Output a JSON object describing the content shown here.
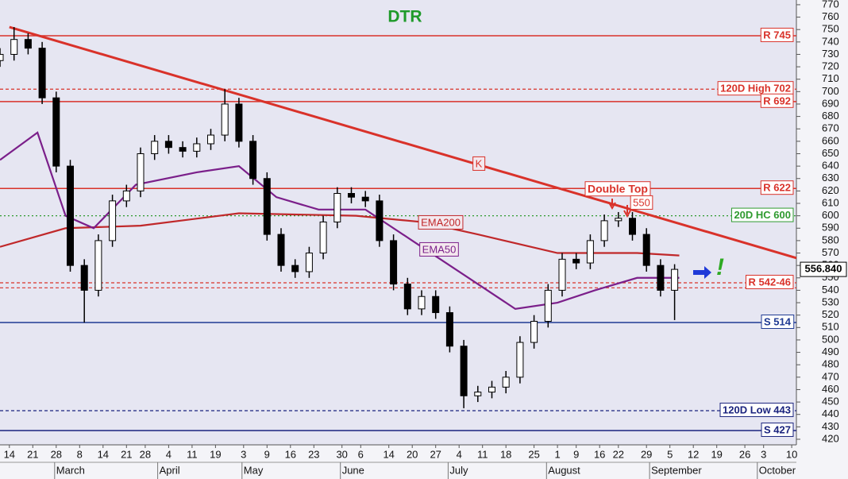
{
  "chart_data": {
    "type": "candlestick",
    "title": "DTR",
    "xlim": [
      0,
      170
    ],
    "ylim": [
      415.5,
      773.8
    ],
    "yticks": [
      420,
      430,
      440,
      450,
      460,
      470,
      480,
      490,
      500,
      510,
      520,
      530,
      540,
      550,
      560,
      570,
      580,
      590,
      600,
      610,
      620,
      630,
      640,
      650,
      660,
      670,
      680,
      690,
      700,
      710,
      720,
      730,
      740,
      750,
      760,
      770
    ],
    "xticks": [
      {
        "value": 2,
        "label": "14"
      },
      {
        "value": 7,
        "label": "21"
      },
      {
        "value": 12,
        "label": "28"
      },
      {
        "value": 17,
        "label": "8"
      },
      {
        "value": 22,
        "label": "14"
      },
      {
        "value": 27,
        "label": "21"
      },
      {
        "value": 31,
        "label": "28"
      },
      {
        "value": 36,
        "label": "4"
      },
      {
        "value": 41,
        "label": "11"
      },
      {
        "value": 46,
        "label": "19"
      },
      {
        "value": 52,
        "label": "3"
      },
      {
        "value": 57,
        "label": "9"
      },
      {
        "value": 62,
        "label": "16"
      },
      {
        "value": 67,
        "label": "23"
      },
      {
        "value": 73,
        "label": "30"
      },
      {
        "value": 77,
        "label": "6"
      },
      {
        "value": 83,
        "label": "14"
      },
      {
        "value": 88,
        "label": "20"
      },
      {
        "value": 93,
        "label": "27"
      },
      {
        "value": 98,
        "label": "4"
      },
      {
        "value": 103,
        "label": "11"
      },
      {
        "value": 108,
        "label": "18"
      },
      {
        "value": 114,
        "label": "25"
      },
      {
        "value": 119,
        "label": "1"
      },
      {
        "value": 123,
        "label": "9"
      },
      {
        "value": 128,
        "label": "16"
      },
      {
        "value": 132,
        "label": "22"
      },
      {
        "value": 138,
        "label": "29"
      },
      {
        "value": 143,
        "label": "5"
      },
      {
        "value": 148,
        "label": "12"
      },
      {
        "value": 153,
        "label": "19"
      },
      {
        "value": 159,
        "label": "26"
      },
      {
        "value": 163,
        "label": "3"
      },
      {
        "value": 169,
        "label": "10"
      }
    ],
    "month_ticks": [
      {
        "value": 12,
        "label": "March"
      },
      {
        "value": 34,
        "label": "April"
      },
      {
        "value": 52,
        "label": "May"
      },
      {
        "value": 73,
        "label": "June"
      },
      {
        "value": 96,
        "label": "July"
      },
      {
        "value": 117,
        "label": "August"
      },
      {
        "value": 139,
        "label": "September"
      },
      {
        "value": 162,
        "label": "October"
      }
    ],
    "candles": {
      "x": [
        0,
        3,
        6,
        9,
        12,
        15,
        18,
        21,
        24,
        27,
        30,
        33,
        36,
        39,
        42,
        45,
        48,
        51,
        54,
        57,
        60,
        63,
        66,
        69,
        72,
        75,
        78,
        81,
        84,
        87,
        90,
        93,
        96,
        99,
        102,
        105,
        108,
        111,
        114,
        117,
        120,
        123,
        126,
        129,
        132,
        135,
        138,
        141,
        144
      ],
      "open": [
        725,
        730,
        742,
        735,
        695,
        640,
        560,
        540,
        580,
        612,
        620,
        650,
        660,
        655,
        652,
        658,
        665,
        690,
        660,
        630,
        585,
        560,
        555,
        570,
        595,
        618,
        615,
        612,
        580,
        545,
        525,
        535,
        522,
        495,
        455,
        458,
        462,
        470,
        498,
        515,
        540,
        565,
        562,
        580,
        596,
        598,
        585,
        560,
        540
      ],
      "high": [
        735,
        752,
        747,
        740,
        700,
        645,
        565,
        585,
        617,
        625,
        655,
        665,
        665,
        660,
        663,
        670,
        702,
        695,
        665,
        635,
        590,
        565,
        575,
        600,
        623,
        623,
        620,
        617,
        585,
        550,
        540,
        540,
        527,
        500,
        463,
        467,
        475,
        503,
        520,
        545,
        570,
        570,
        585,
        601,
        603,
        603,
        590,
        565,
        561
      ],
      "low": [
        720,
        725,
        730,
        690,
        635,
        555,
        514,
        535,
        575,
        607,
        615,
        645,
        650,
        647,
        647,
        653,
        660,
        655,
        625,
        580,
        555,
        550,
        550,
        565,
        590,
        610,
        607,
        575,
        540,
        520,
        520,
        517,
        490,
        445,
        450,
        453,
        457,
        465,
        493,
        510,
        535,
        557,
        557,
        575,
        591,
        580,
        555,
        535,
        516
      ],
      "close": [
        730,
        742,
        735,
        695,
        640,
        560,
        540,
        580,
        612,
        620,
        650,
        660,
        655,
        652,
        658,
        665,
        690,
        660,
        630,
        585,
        560,
        555,
        570,
        595,
        618,
        615,
        612,
        580,
        545,
        525,
        535,
        522,
        495,
        455,
        458,
        462,
        470,
        498,
        515,
        540,
        565,
        562,
        580,
        596,
        598,
        585,
        560,
        540,
        556.84
      ]
    },
    "series": [
      {
        "name": "EMA200",
        "color": "#c0282a",
        "x": [
          0,
          14,
          30,
          51,
          76,
          90,
          102,
          119,
          136,
          145
        ],
        "values": [
          575,
          590,
          592,
          602,
          600,
          595,
          585,
          570,
          570,
          568
        ]
      },
      {
        "name": "EMA50",
        "color": "#7b1f8a",
        "x": [
          0,
          8,
          14,
          20,
          29,
          42,
          51,
          59,
          68,
          78,
          88,
          102,
          110,
          119,
          127,
          136,
          145
        ],
        "values": [
          645,
          667,
          600,
          590,
          625,
          635,
          640,
          615,
          605,
          605,
          580,
          545,
          525,
          530,
          540,
          550,
          550
        ]
      },
      {
        "name": "K",
        "color": "#d9322a",
        "x": [
          2,
          170
        ],
        "values": [
          752,
          566
        ]
      }
    ],
    "levels": [
      {
        "label": "R 745",
        "values": [
          745
        ],
        "color": "#d9322a",
        "style": "solid"
      },
      {
        "label": "120D High 702",
        "values": [
          702
        ],
        "color": "#d9322a",
        "style": "dashed"
      },
      {
        "label": "R 692",
        "values": [
          692
        ],
        "color": "#d9322a",
        "style": "solid"
      },
      {
        "label": "R 622",
        "values": [
          622
        ],
        "color": "#d9322a",
        "style": "solid"
      },
      {
        "label": "20D HC 600",
        "values": [
          600
        ],
        "color": "#2e9a2e",
        "style": "dotted"
      },
      {
        "label": "R 542-46",
        "values": [
          542,
          546
        ],
        "color": "#d9322a",
        "style": "dashed"
      },
      {
        "label": "S 514",
        "values": [
          514
        ],
        "color": "#1f3a93",
        "style": "solid"
      },
      {
        "label": "120D Low 443",
        "values": [
          443
        ],
        "color": "#1a237e",
        "style": "dashed"
      },
      {
        "label": "S 427",
        "values": [
          427
        ],
        "color": "#1a237e",
        "style": "solid"
      }
    ],
    "last_price": {
      "value": 556.84,
      "label": "556.840"
    },
    "annotations": [
      "Double Top",
      "550",
      "!"
    ]
  }
}
